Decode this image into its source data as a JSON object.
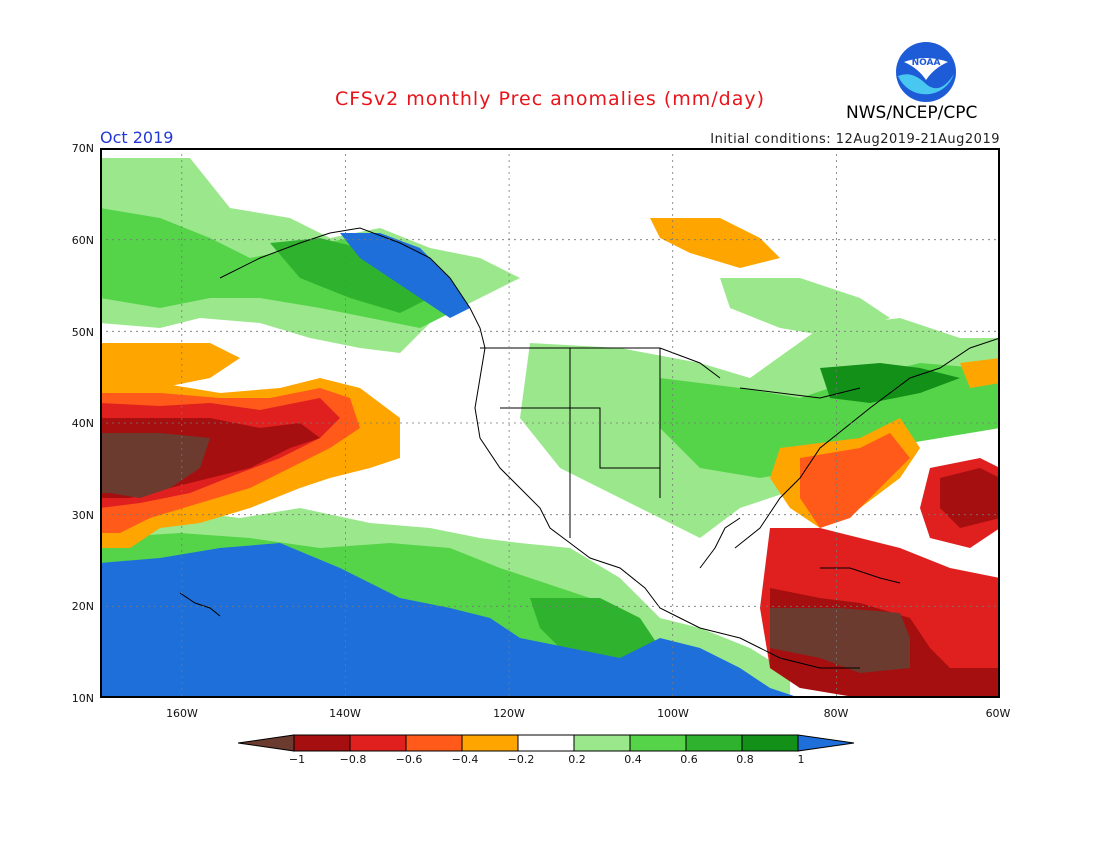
{
  "header": {
    "title": "CFSv2 monthly Prec anomalies (mm/day)",
    "month": "Oct 2019",
    "initial_conditions": "Initial conditions: 12Aug2019-21Aug2019",
    "agency": "NWS/NCEP/CPC",
    "logo_text": "NOAA"
  },
  "map": {
    "lat_labels": [
      "70N",
      "60N",
      "50N",
      "40N",
      "30N",
      "20N",
      "10N"
    ],
    "lon_labels": [
      "160W",
      "140W",
      "120W",
      "100W",
      "80W",
      "60W"
    ],
    "lat_range": [
      10,
      70
    ],
    "lon_range": [
      -170,
      -60
    ],
    "anomaly_regions": [
      {
        "name": "central-pacific-dry",
        "level": "-1",
        "color": "#6b3b2f"
      },
      {
        "name": "northeast-pacific-dry",
        "level": "-0.8 to -0.4",
        "color": "#d7231b"
      },
      {
        "name": "tropical-east-pacific-wet",
        "level": "1",
        "color": "#1e6fd9"
      },
      {
        "name": "pacific-northwest-wet",
        "level": "0.6 to 1",
        "color": "#1e6fd9"
      },
      {
        "name": "caribbean-dry",
        "level": "-1",
        "color": "#6b3b2f"
      },
      {
        "name": "great-lakes-wet",
        "level": "0.4 to 0.8",
        "color": "#1f9c2a"
      }
    ]
  },
  "colorbar": {
    "labels": [
      "−1",
      "−0.8",
      "−0.6",
      "−0.4",
      "−0.2",
      "0.2",
      "0.4",
      "0.6",
      "0.8",
      "1"
    ],
    "colors": [
      "#6b3b2f",
      "#a50f0f",
      "#e01f1f",
      "#ff5a1a",
      "#ffa500",
      "#ffffff",
      "#9be88c",
      "#55d44a",
      "#2fb32f",
      "#129018",
      "#1e6fd9"
    ]
  }
}
